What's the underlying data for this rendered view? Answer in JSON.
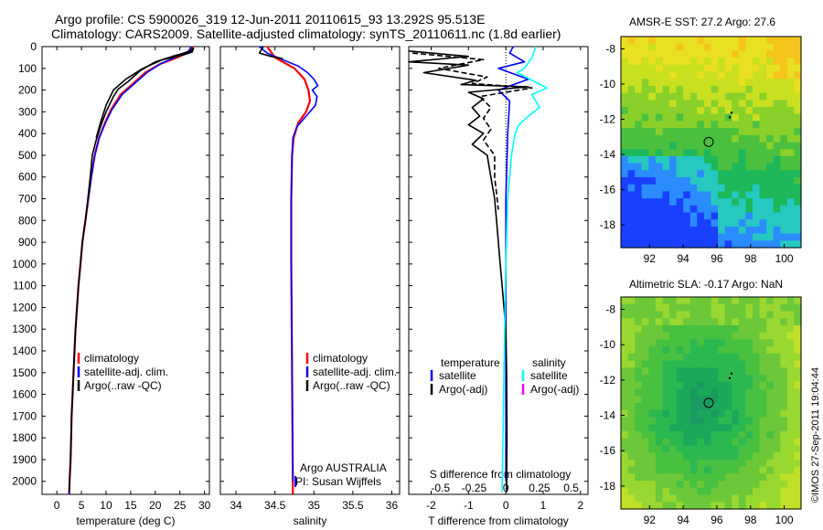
{
  "header": {
    "line1": "Argo profile: CS 5900026_319 12-Jun-2011 20110615_93 13.292S 95.513E",
    "line2": "Climatology: CARS2009. Satellite-adjusted climatology: synTS_20110611.nc (1.8d earlier)"
  },
  "credit": "©IMOS 27-Sep-2011 19:04:44",
  "colors": {
    "climatology": "#ff0000",
    "satellite": "#0000ff",
    "argo": "#000000",
    "sal_satellite": "#00ffff",
    "sal_argo": "#ff00ff"
  },
  "chart_data": [
    {
      "type": "line",
      "id": "temperature",
      "xlabel": "temperature (deg C)",
      "ylabel": "",
      "xlim": [
        -3,
        31
      ],
      "ylim": [
        2060,
        0
      ],
      "x_ticks": [
        0,
        5,
        10,
        15,
        20,
        25,
        30
      ],
      "y_ticks": [
        0,
        100,
        200,
        300,
        400,
        500,
        600,
        700,
        800,
        900,
        1000,
        1100,
        1200,
        1300,
        1400,
        1500,
        1600,
        1700,
        1800,
        1900,
        2000
      ],
      "legend": [
        "climatology",
        "satellite-adj. clim.",
        "Argo(..raw -QC)"
      ],
      "series": [
        {
          "name": "climatology",
          "color": "#ff0000",
          "width": 2.2,
          "points": [
            [
              27.6,
              0
            ],
            [
              27.0,
              20
            ],
            [
              24.5,
              50
            ],
            [
              21.0,
              80
            ],
            [
              18.0,
              120
            ],
            [
              15.5,
              170
            ],
            [
              13.0,
              220
            ],
            [
              11.0,
              290
            ],
            [
              9.8,
              350
            ],
            [
              8.6,
              420
            ],
            [
              7.7,
              500
            ],
            [
              7.0,
              600
            ],
            [
              6.4,
              700
            ],
            [
              5.8,
              800
            ],
            [
              5.2,
              900
            ],
            [
              4.8,
              1000
            ],
            [
              4.4,
              1100
            ],
            [
              4.1,
              1200
            ],
            [
              3.8,
              1300
            ],
            [
              3.6,
              1400
            ],
            [
              3.4,
              1500
            ],
            [
              3.2,
              1600
            ],
            [
              3.0,
              1700
            ],
            [
              2.9,
              1800
            ],
            [
              2.8,
              1900
            ],
            [
              2.6,
              2000
            ],
            [
              2.5,
              2060
            ]
          ]
        },
        {
          "name": "satellite-adj. clim.",
          "color": "#0000ff",
          "width": 1.6,
          "points": [
            [
              27.3,
              0
            ],
            [
              26.8,
              20
            ],
            [
              24.0,
              50
            ],
            [
              21.0,
              80
            ],
            [
              18.3,
              120
            ],
            [
              15.8,
              170
            ],
            [
              13.3,
              220
            ],
            [
              11.2,
              290
            ],
            [
              9.9,
              350
            ],
            [
              8.6,
              420
            ],
            [
              7.7,
              500
            ],
            [
              7.0,
              600
            ],
            [
              6.4,
              700
            ],
            [
              5.8,
              800
            ],
            [
              5.2,
              900
            ],
            [
              4.8,
              1000
            ],
            [
              4.4,
              1100
            ],
            [
              4.1,
              1200
            ],
            [
              3.8,
              1300
            ],
            [
              3.6,
              1400
            ],
            [
              3.4,
              1500
            ],
            [
              3.2,
              1600
            ],
            [
              3.0,
              1700
            ],
            [
              2.9,
              1800
            ],
            [
              2.8,
              1900
            ],
            [
              2.6,
              2000
            ],
            [
              2.5,
              2060
            ]
          ]
        },
        {
          "name": "Argo(..raw -QC)",
          "color": "#000000",
          "width": 1.6,
          "points": [
            [
              27.6,
              5
            ],
            [
              27.3,
              20
            ],
            [
              23.5,
              45
            ],
            [
              20.0,
              70
            ],
            [
              17.0,
              110
            ],
            [
              14.5,
              160
            ],
            [
              12.5,
              195
            ],
            [
              11.5,
              230
            ],
            [
              10.0,
              300
            ],
            [
              9.0,
              360
            ],
            [
              8.0,
              430
            ],
            [
              7.2,
              500
            ],
            [
              6.8,
              600
            ],
            [
              6.3,
              700
            ],
            [
              5.8,
              800
            ],
            [
              5.2,
              900
            ],
            [
              4.8,
              1000
            ],
            [
              4.4,
              1100
            ],
            [
              4.1,
              1200
            ],
            [
              3.8,
              1300
            ],
            [
              3.6,
              1400
            ],
            [
              3.4,
              1500
            ],
            [
              3.2,
              1600
            ],
            [
              3.0,
              1700
            ],
            [
              2.9,
              1800
            ],
            [
              2.8,
              1900
            ],
            [
              2.6,
              2000
            ],
            [
              2.5,
              2050
            ]
          ]
        },
        {
          "name": "",
          "color": "#000000",
          "width": 1.6,
          "points": [
            [
              27.8,
              5
            ],
            [
              27.5,
              25
            ],
            [
              25.5,
              40
            ],
            [
              21.5,
              60
            ],
            [
              17.5,
              100
            ],
            [
              14.0,
              150
            ],
            [
              11.5,
              200
            ],
            [
              10.0,
              270
            ],
            [
              9.0,
              340
            ],
            [
              8.0,
              420
            ]
          ]
        }
      ]
    },
    {
      "type": "line",
      "id": "salinity",
      "xlabel": "salinity",
      "ylabel": "",
      "xlim": [
        33.8,
        36.1
      ],
      "ylim": [
        2060,
        0
      ],
      "x_ticks": [
        34,
        34.5,
        35,
        35.5,
        36
      ],
      "legend": [
        "climatology",
        "satellite-adj. clim.",
        "Argo(..raw -QC)"
      ],
      "annotation_lines": [
        "Argo AUSTRALIA",
        "PI: Susan Wijffels"
      ],
      "series": [
        {
          "name": "climatology",
          "color": "#ff0000",
          "width": 2.2,
          "points": [
            [
              34.4,
              0
            ],
            [
              34.5,
              50
            ],
            [
              34.75,
              100
            ],
            [
              34.88,
              150
            ],
            [
              34.93,
              200
            ],
            [
              34.95,
              250
            ],
            [
              34.9,
              300
            ],
            [
              34.8,
              350
            ],
            [
              34.74,
              420
            ],
            [
              34.72,
              500
            ],
            [
              34.71,
              700
            ],
            [
              34.71,
              1000
            ],
            [
              34.72,
              1500
            ],
            [
              34.73,
              2060
            ]
          ]
        },
        {
          "name": "satellite-adj. clim.",
          "color": "#0000ff",
          "width": 1.6,
          "points": [
            [
              34.3,
              0
            ],
            [
              34.4,
              30
            ],
            [
              34.6,
              60
            ],
            [
              34.8,
              90
            ],
            [
              34.92,
              120
            ],
            [
              35.0,
              150
            ],
            [
              35.05,
              180
            ],
            [
              34.98,
              200
            ],
            [
              35.04,
              230
            ],
            [
              35.02,
              270
            ],
            [
              34.9,
              320
            ],
            [
              34.78,
              370
            ],
            [
              34.73,
              420
            ],
            [
              34.72,
              500
            ],
            [
              34.71,
              700
            ],
            [
              34.71,
              1000
            ],
            [
              34.72,
              1500
            ],
            [
              34.73,
              2000
            ]
          ]
        },
        {
          "name": "Argo(..raw -QC)",
          "color": "#000000",
          "width": 1.6,
          "points": [
            [
              34.35,
              0
            ],
            [
              34.3,
              30
            ],
            [
              34.45,
              45
            ],
            [
              34.6,
              55
            ]
          ]
        }
      ]
    },
    {
      "type": "line",
      "id": "difference",
      "xlabel": "T difference from climatology",
      "x2label": "S difference from climatology",
      "xlim": [
        -2.6,
        2.2
      ],
      "ylim": [
        2060,
        0
      ],
      "x_ticks": [
        -2,
        -1,
        0,
        1,
        2
      ],
      "x_ticklabels": [
        "-2",
        "-1",
        "0",
        "1",
        "2"
      ],
      "x2_ticks": [
        "-0.5",
        "-0.25",
        "0",
        "0.25",
        "0.5"
      ],
      "legend_headers": [
        "temperature",
        "salinity"
      ],
      "legend": [
        "satellite",
        "Argo(-adj)",
        "satellite",
        "Argo(-adj)"
      ],
      "series": [
        {
          "name": "satellite",
          "color": "#0000ff",
          "width": 1.6,
          "points": [
            [
              0.2,
              0
            ],
            [
              0.1,
              30
            ],
            [
              0.5,
              70
            ],
            [
              -0.2,
              100
            ],
            [
              0.6,
              150
            ],
            [
              -0.2,
              200
            ],
            [
              0.1,
              250
            ],
            [
              0.05,
              400
            ],
            [
              0.0,
              700
            ],
            [
              0.0,
              1000
            ],
            [
              0.0,
              2000
            ]
          ]
        },
        {
          "name": "Argo(-adj)",
          "color": "#000000",
          "width": 1.6,
          "points": [
            [
              -2.6,
              20
            ],
            [
              -1.0,
              45
            ],
            [
              -2.6,
              70
            ],
            [
              -1.0,
              85
            ],
            [
              -2.2,
              120
            ],
            [
              -0.8,
              155
            ],
            [
              -1.2,
              175
            ],
            [
              0.6,
              185
            ],
            [
              -1.0,
              210
            ],
            [
              -0.6,
              240
            ],
            [
              -0.9,
              280
            ],
            [
              -0.7,
              320
            ],
            [
              -1.0,
              360
            ],
            [
              -0.6,
              400
            ],
            [
              -0.9,
              450
            ],
            [
              -0.5,
              500
            ],
            [
              -0.4,
              600
            ],
            [
              -0.3,
              700
            ],
            [
              -0.25,
              800
            ],
            [
              -0.2,
              900
            ],
            [
              -0.15,
              1000
            ],
            [
              -0.1,
              1100
            ],
            [
              -0.05,
              1200
            ],
            [
              0.0,
              1300
            ],
            [
              0.02,
              1500
            ],
            [
              0.03,
              1800
            ],
            [
              0.02,
              2050
            ]
          ]
        },
        {
          "name": "Argo(-adj)",
          "color": "#000000",
          "width": 1.6,
          "dash": true,
          "points": [
            [
              -2.5,
              30
            ],
            [
              -0.6,
              60
            ],
            [
              -1.8,
              100
            ],
            [
              -0.5,
              140
            ],
            [
              -0.9,
              170
            ],
            [
              0.7,
              190
            ],
            [
              -0.7,
              230
            ],
            [
              -0.4,
              280
            ],
            [
              -0.6,
              330
            ],
            [
              -0.4,
              380
            ],
            [
              -0.6,
              430
            ],
            [
              -0.3,
              500
            ],
            [
              -0.3,
              600
            ],
            [
              -0.2,
              750
            ]
          ]
        },
        {
          "name": "satellite",
          "color": "#00ffff",
          "width": 1.6,
          "points": [
            [
              0.8,
              0
            ],
            [
              0.7,
              50
            ],
            [
              0.5,
              100
            ],
            [
              0.3,
              120
            ],
            [
              1.1,
              190
            ],
            [
              0.7,
              220
            ],
            [
              0.9,
              280
            ],
            [
              0.6,
              320
            ],
            [
              0.35,
              360
            ],
            [
              0.25,
              400
            ],
            [
              0.15,
              500
            ],
            [
              0.1,
              600
            ],
            [
              0.05,
              700
            ],
            [
              0.0,
              1000
            ],
            [
              -0.05,
              1500
            ],
            [
              -0.1,
              2050
            ]
          ]
        }
      ]
    },
    {
      "type": "heatmap",
      "id": "sst_map",
      "title": "AMSR-E SST: 27.2 Argo: 27.6",
      "xlim": [
        90.3,
        101.0
      ],
      "ylim": [
        -19.3,
        -7.3
      ],
      "x_ticks": [
        92,
        94,
        96,
        98,
        100
      ],
      "y_ticks": [
        -8,
        -10,
        -12,
        -14,
        -16,
        -18
      ],
      "float_position": [
        95.513,
        -13.292
      ]
    },
    {
      "type": "heatmap",
      "id": "sla_map",
      "title": "Altimetric SLA: -0.17 Argo: NaN",
      "xlim": [
        90.3,
        101.0
      ],
      "ylim": [
        -19.3,
        -7.3
      ],
      "x_ticks": [
        92,
        94,
        96,
        98,
        100
      ],
      "y_ticks": [
        -8,
        -10,
        -12,
        -14,
        -16,
        -18
      ],
      "float_position": [
        95.513,
        -13.292
      ]
    }
  ]
}
